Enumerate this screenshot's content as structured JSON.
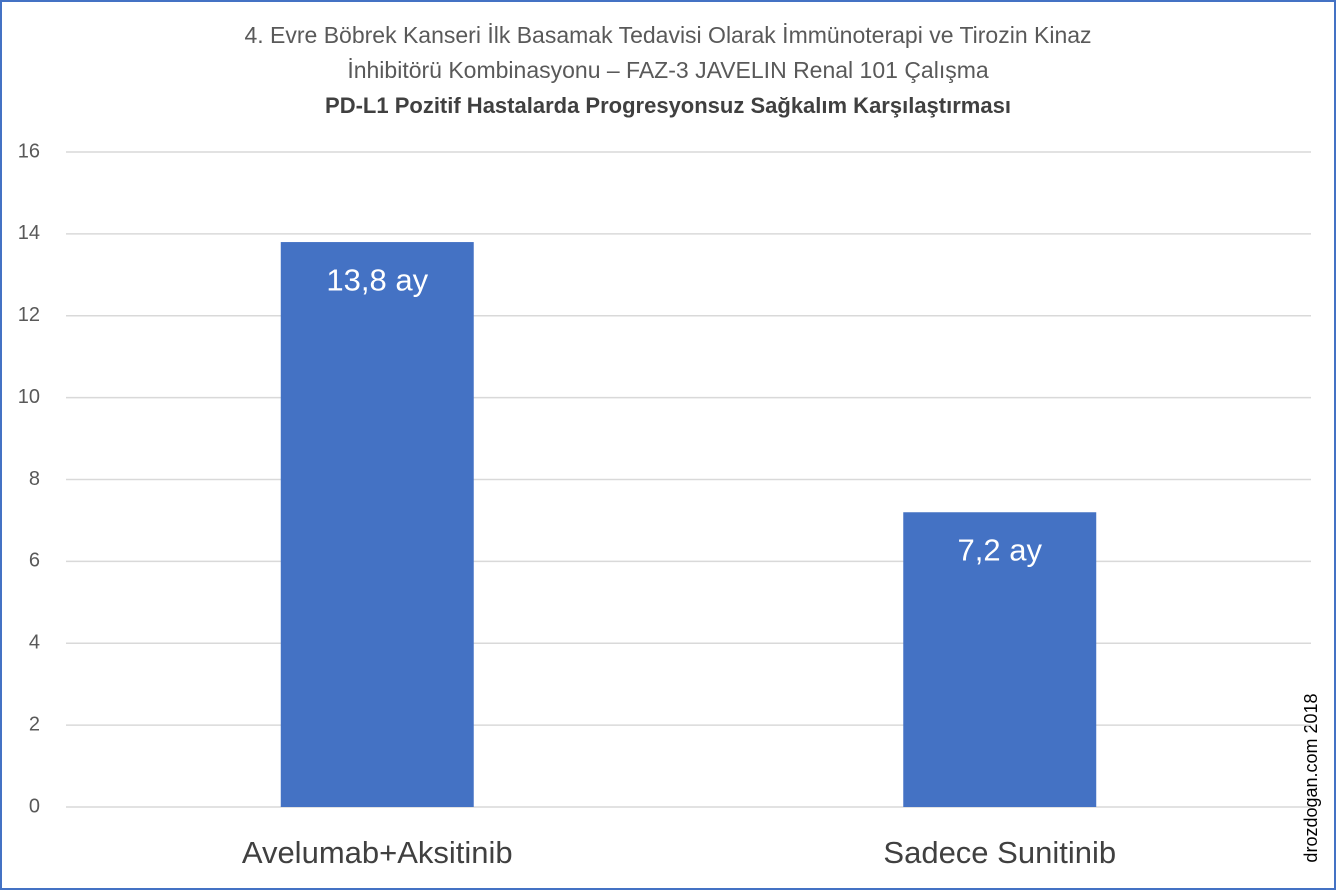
{
  "chart_data": {
    "type": "bar",
    "title": [
      "4. Evre Böbrek Kanseri İlk Basamak Tedavisi Olarak İmmünoterapi ve Tirozin Kinaz",
      "İnhibitörü Kombinasyonu – FAZ-3 JAVELIN Renal 101 Çalışma"
    ],
    "subtitle": "PD-L1 Pozitif Hastalarda Progresyonsuz Sağkalım Karşılaştırması",
    "categories": [
      "Avelumab+Aksitinib",
      "Sadece Sunitinib"
    ],
    "values": [
      13.8,
      7.2
    ],
    "value_labels": [
      "13,8 ay",
      "7,2 ay"
    ],
    "color": "#4472c4",
    "ylim": [
      0,
      16
    ],
    "yticks": [
      0,
      2,
      4,
      6,
      8,
      10,
      12,
      14,
      16
    ],
    "grid": true,
    "annotation": "drozdogan.com 2018"
  }
}
